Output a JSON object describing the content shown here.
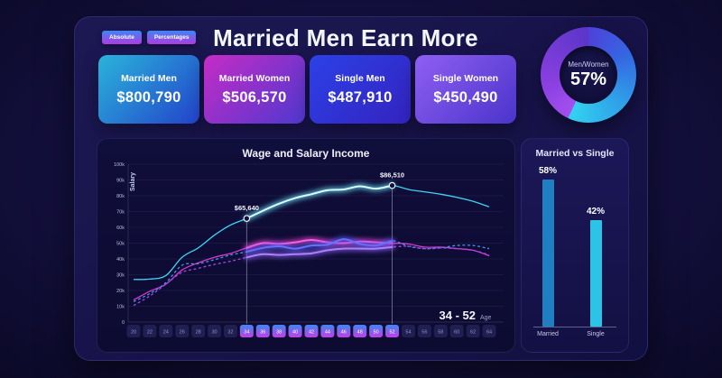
{
  "header": {
    "title": "Married Men Earn More",
    "toggles": [
      {
        "label": "Absolute"
      },
      {
        "label": "Percentages"
      }
    ]
  },
  "stat_cards": [
    {
      "label": "Married Men",
      "value": "$800,790",
      "gradient": [
        "#2ab4da",
        "#2343cb"
      ]
    },
    {
      "label": "Married Women",
      "value": "$506,570",
      "gradient": [
        "#c52cc6",
        "#4f38cf"
      ]
    },
    {
      "label": "Single Men",
      "value": "$487,910",
      "gradient": [
        "#2c41e6",
        "#3423c0"
      ]
    },
    {
      "label": "Single Women",
      "value": "$450,490",
      "gradient": [
        "#8f5ff2",
        "#4a34cb"
      ]
    }
  ],
  "donut": {
    "label": "Men/Women",
    "value": "57%",
    "percent": 57,
    "colors": {
      "seg_start": "#4d42d8",
      "seg_mid": "#2f9fe8",
      "seg_end": "#32d2f0",
      "rest_start": "#a44ff0",
      "rest_mid": "#8a3fe0",
      "rest_end": "#5b36c8"
    }
  },
  "chart_data": [
    {
      "type": "line",
      "title": "Wage and Salary Income",
      "xlabel": "Age",
      "ylabel": "Salary",
      "ylim": [
        0,
        100
      ],
      "yticks": [
        "0",
        "10k",
        "20k",
        "30k",
        "40k",
        "50k",
        "60k",
        "70k",
        "80k",
        "90k",
        "100k"
      ],
      "x": [
        20,
        22,
        24,
        26,
        28,
        30,
        32,
        34,
        36,
        38,
        40,
        42,
        44,
        46,
        48,
        50,
        52,
        54,
        56,
        58,
        60,
        62,
        64
      ],
      "highlight_range": [
        34,
        52
      ],
      "range_label": "34 - 52",
      "range_suffix": "Age",
      "annotations": [
        {
          "x": 34,
          "label": "$65,640",
          "value_k": 65.64
        },
        {
          "x": 52,
          "label": "$86,510",
          "value_k": 86.51
        }
      ],
      "series": [
        {
          "name": "Married Men",
          "style": "solid",
          "color": "#3fd2f2",
          "glow": "#6eeaff",
          "core": "#d9fbff",
          "values": [
            27,
            27.2,
            29.5,
            41,
            47,
            55,
            61.5,
            65.64,
            70.5,
            75,
            78.5,
            81,
            83.5,
            84,
            86,
            84.5,
            86.51,
            84,
            82.5,
            81,
            79,
            76.5,
            73
          ]
        },
        {
          "name": "Married Women",
          "style": "solid",
          "color": "#d838d0",
          "glow": "#ff44d6",
          "core": "#ff62e2",
          "values": [
            14,
            19.5,
            24,
            33,
            37.5,
            41,
            43.5,
            47,
            50,
            49.5,
            50.5,
            52,
            50.5,
            50,
            51,
            50.5,
            50,
            49.5,
            47.5,
            47.5,
            46.5,
            45.5,
            42
          ]
        },
        {
          "name": "Single Men",
          "style": "dashed",
          "color": "#3f97e8",
          "glow": "#4a55f8",
          "core": "#6372fa",
          "values": [
            13,
            18,
            25,
            36,
            37,
            39.5,
            42.5,
            44.5,
            47,
            48,
            46.5,
            48.5,
            49,
            52.5,
            49.5,
            48.5,
            51.5,
            48,
            46.5,
            47,
            48.5,
            48.5,
            46.5
          ]
        },
        {
          "name": "Single Women",
          "style": "dashed",
          "color": "#9a4ae0",
          "glow": "#8a5cf0",
          "core": "#ab82fa",
          "values": [
            10.5,
            16.5,
            24,
            31.5,
            34,
            36.5,
            38.5,
            41,
            43,
            42.5,
            43,
            43.5,
            45.5,
            46.5,
            46.5,
            46.5,
            47.5,
            48,
            46.5,
            47,
            46.5,
            45.5,
            42.5
          ]
        }
      ]
    },
    {
      "type": "bar",
      "title": "Married vs Single",
      "categories": [
        "Married",
        "Single"
      ],
      "values": [
        58,
        42
      ],
      "value_labels": [
        "58%",
        "42%"
      ],
      "colors": [
        "#1f7fc2",
        "#2cc4e6"
      ],
      "ylim": [
        0,
        70
      ]
    }
  ]
}
